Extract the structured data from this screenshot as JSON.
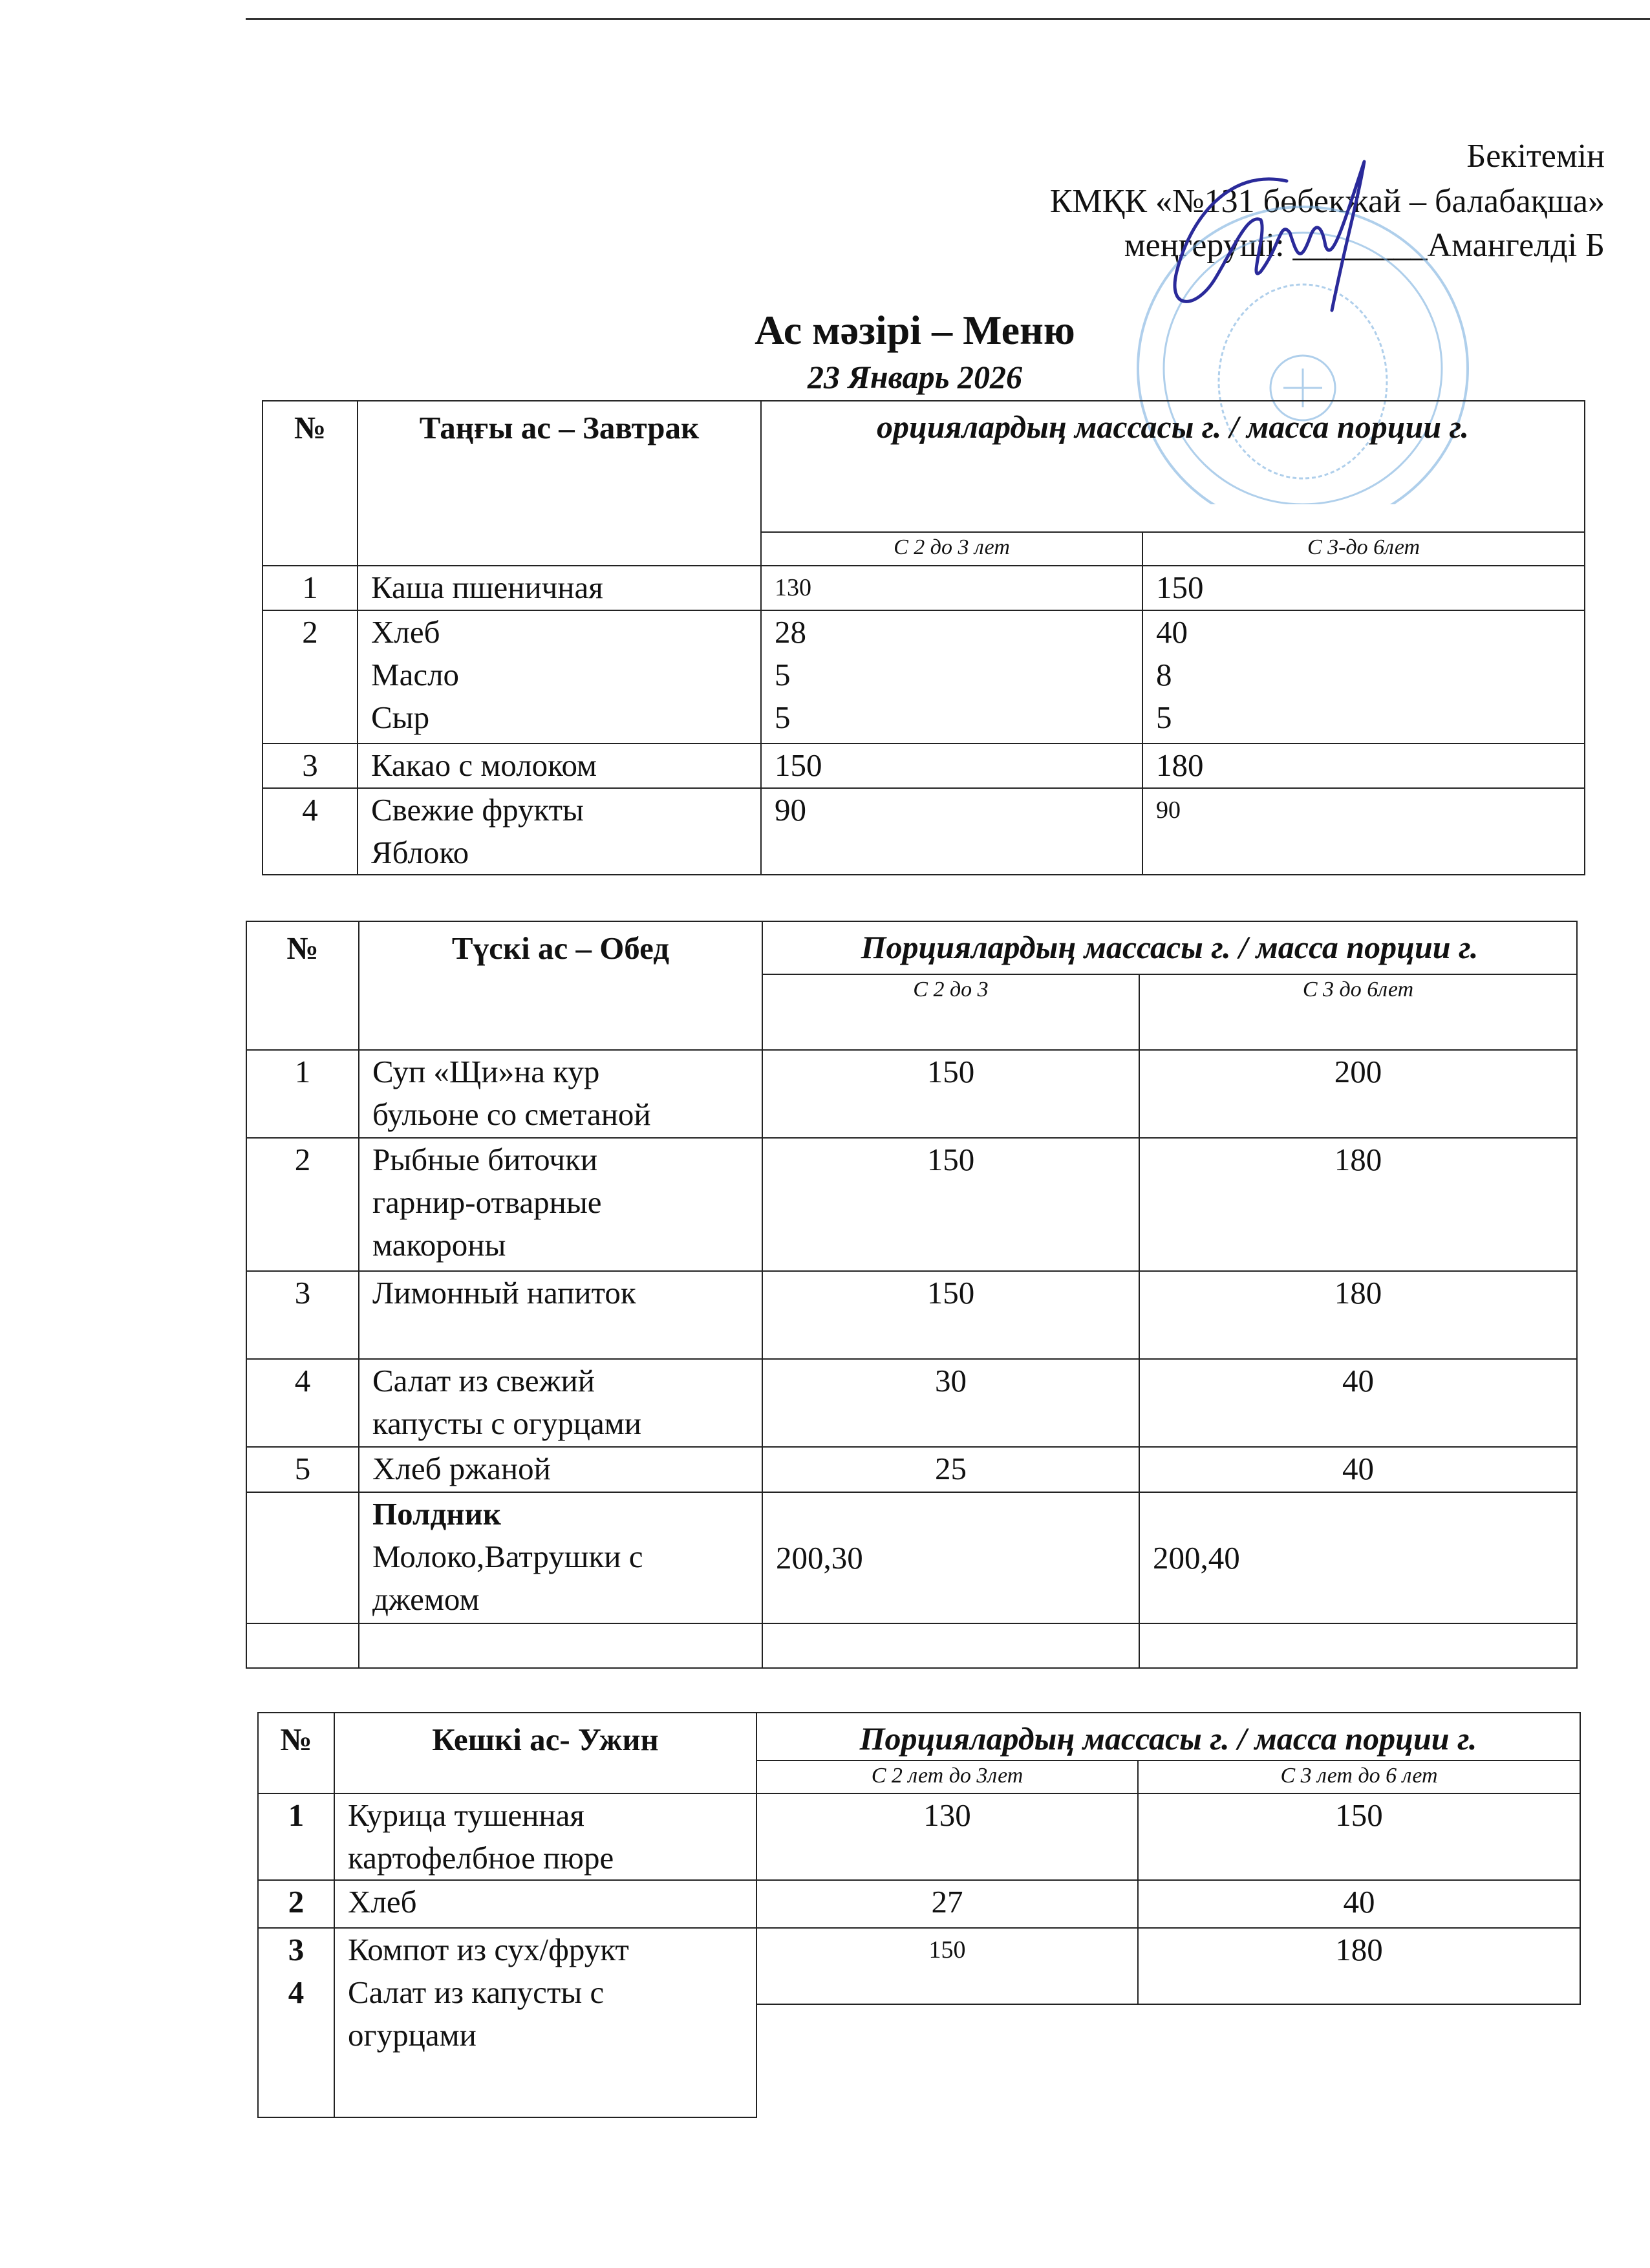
{
  "approval": {
    "line1": "Бекітемін",
    "line2": "КМҚК «№131 бөбекжай – балабақша»",
    "line3_label": "меңгеруші:",
    "line3_blank": "________",
    "line3_name": "Амангелді  Б"
  },
  "title": "Ас мәзірі – Меню",
  "date": "23  Январь  2026",
  "colors": {
    "ink": "#111111",
    "stamp": "#6fa8dc",
    "signature": "#2a2a9a"
  },
  "breakfast": {
    "header": {
      "num": "№",
      "title": "Таңғы ас – Завтрак",
      "portion": "орциялардың массасы г. / масса порции г.",
      "age1": "С 2 до 3 лет",
      "age2": "С 3-до 6лет"
    },
    "rows": [
      {
        "num": [
          "1"
        ],
        "items": [
          "Каша пшеничная"
        ],
        "age1": [
          "130"
        ],
        "age2": [
          "150"
        ]
      },
      {
        "num": [
          "2"
        ],
        "items": [
          "Хлеб",
          "Масло",
          "Сыр"
        ],
        "age1": [
          "28",
          "5",
          "5"
        ],
        "age2": [
          "40",
          "8",
          "5"
        ]
      },
      {
        "num": [
          "3"
        ],
        "items": [
          "Какао с молоком"
        ],
        "age1": [
          "150"
        ],
        "age2": [
          "180"
        ]
      },
      {
        "num": [
          "4"
        ],
        "items": [
          "Свежие фрукты",
          "Яблоко"
        ],
        "age1": [
          "90"
        ],
        "age2": [
          "90"
        ]
      }
    ]
  },
  "lunch": {
    "header": {
      "num": "№",
      "title": "Түскі  ас – Обед",
      "portion": "Порциялардың массасы г. / масса порции г.",
      "age1": "С 2 до 3",
      "age2": "С 3 до 6лет"
    },
    "rows": [
      {
        "num": [
          "1"
        ],
        "items": [
          "Суп «Щи»на кур",
          "бульоне со сметаной"
        ],
        "age1": [
          "150"
        ],
        "age2": [
          "200"
        ]
      },
      {
        "num": [
          "2"
        ],
        "items": [
          "Рыбные биточки",
          "гарнир-отварные",
          "макороны"
        ],
        "age1": [
          "150"
        ],
        "age2": [
          "180"
        ]
      },
      {
        "num": [
          "3"
        ],
        "items": [
          "Лимонный напиток"
        ],
        "age1": [
          "150"
        ],
        "age2": [
          "180"
        ]
      },
      {
        "num": [
          "4"
        ],
        "items": [
          "Салат  из свежий",
          "капусты с огурцами"
        ],
        "age1": [
          "30"
        ],
        "age2": [
          "40"
        ]
      },
      {
        "num": [
          "5"
        ],
        "items": [
          "Хлеб ржаной"
        ],
        "age1": [
          "25"
        ],
        "age2": [
          "40"
        ]
      },
      {
        "num": [
          ""
        ],
        "items": [
          "Полдник",
          "Молоко,Ватрушки с",
          "джемом"
        ],
        "age1": [
          "200,30"
        ],
        "age2": [
          "200,40"
        ]
      },
      {
        "num": [
          ""
        ],
        "items": [
          ""
        ],
        "age1": [
          ""
        ],
        "age2": [
          ""
        ]
      }
    ]
  },
  "dinner": {
    "header": {
      "num": "№",
      "title": "Кешкі ас- Ужин",
      "portion": "Порциялардың массасы г. / масса порции г.",
      "age1": "С 2 лет до 3лет",
      "age2": "С 3 лет до 6 лет"
    },
    "rows": [
      {
        "num": [
          "1"
        ],
        "items": [
          "Курица тушенная",
          "картофелбное пюре"
        ],
        "age1": [
          "130"
        ],
        "age2": [
          "150"
        ]
      },
      {
        "num": [
          "2"
        ],
        "items": [
          "Хлеб"
        ],
        "age1": [
          "27"
        ],
        "age2": [
          "40"
        ]
      },
      {
        "num": [
          "3",
          "4"
        ],
        "items": [
          "Компот из сух/фрукт",
          "Салат из капусты с",
          "огурцами"
        ],
        "age1": [
          "150"
        ],
        "age2": [
          "180"
        ]
      }
    ]
  }
}
